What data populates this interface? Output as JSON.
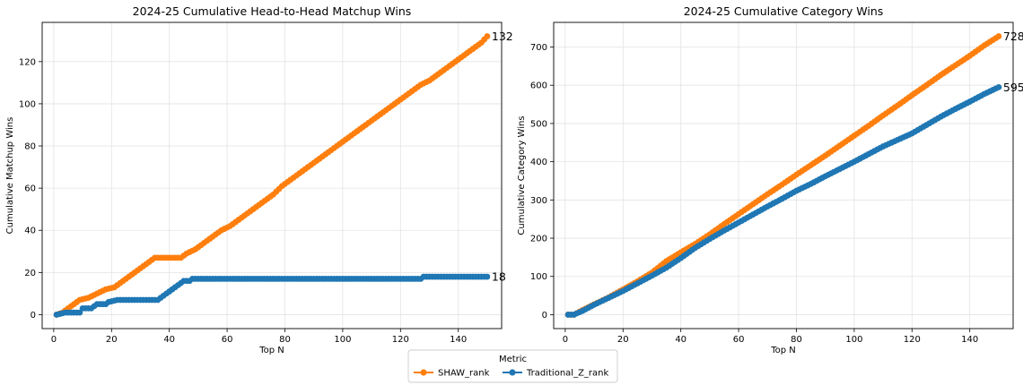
{
  "legend": {
    "title": "Metric",
    "entries": [
      {
        "name": "SHAW_rank",
        "color": "#ff7f0e"
      },
      {
        "name": "Traditional_Z_rank",
        "color": "#1f77b4"
      }
    ],
    "placement": "bottom-center"
  },
  "chart_data": [
    {
      "type": "line",
      "title": "2024-25 Cumulative Head-to-Head Matchup Wins",
      "xlabel": "Top N",
      "ylabel": "Cumulative Matchup Wins",
      "xlim": [
        -4,
        155
      ],
      "ylim": [
        -6.6,
        138.6
      ],
      "xticks": [
        0,
        20,
        40,
        60,
        80,
        100,
        120,
        140
      ],
      "yticks": [
        0,
        20,
        40,
        60,
        80,
        100,
        120
      ],
      "grid": true,
      "marker": "circle",
      "series": [
        {
          "name": "SHAW_rank",
          "color": "#ff7f0e",
          "end_label": "132",
          "points": [
            [
              1,
              0
            ],
            [
              3,
              1
            ],
            [
              6,
              4
            ],
            [
              9,
              7
            ],
            [
              12,
              8
            ],
            [
              15,
              10
            ],
            [
              18,
              12
            ],
            [
              21,
              13
            ],
            [
              24,
              16
            ],
            [
              27,
              19
            ],
            [
              30,
              22
            ],
            [
              33,
              25
            ],
            [
              35,
              27
            ],
            [
              38,
              27
            ],
            [
              41,
              27
            ],
            [
              44,
              27
            ],
            [
              46,
              29
            ],
            [
              49,
              31
            ],
            [
              52,
              34
            ],
            [
              55,
              37
            ],
            [
              58,
              40
            ],
            [
              61,
              42
            ],
            [
              64,
              45
            ],
            [
              67,
              48
            ],
            [
              70,
              51
            ],
            [
              73,
              54
            ],
            [
              76,
              57
            ],
            [
              79,
              61
            ],
            [
              82,
              64
            ],
            [
              85,
              67
            ],
            [
              88,
              70
            ],
            [
              91,
              73
            ],
            [
              94,
              76
            ],
            [
              97,
              79
            ],
            [
              100,
              82
            ],
            [
              103,
              85
            ],
            [
              106,
              88
            ],
            [
              109,
              91
            ],
            [
              112,
              94
            ],
            [
              115,
              97
            ],
            [
              118,
              100
            ],
            [
              121,
              103
            ],
            [
              124,
              106
            ],
            [
              127,
              109
            ],
            [
              130,
              111
            ],
            [
              133,
              114
            ],
            [
              136,
              117
            ],
            [
              139,
              120
            ],
            [
              142,
              123
            ],
            [
              145,
              126
            ],
            [
              148,
              129
            ],
            [
              150,
              132
            ]
          ]
        },
        {
          "name": "Traditional_Z_rank",
          "color": "#1f77b4",
          "end_label": "18",
          "points": [
            [
              1,
              0
            ],
            [
              4,
              1
            ],
            [
              9,
              1
            ],
            [
              10,
              3
            ],
            [
              13,
              3
            ],
            [
              15,
              5
            ],
            [
              18,
              5
            ],
            [
              19,
              6
            ],
            [
              22,
              7
            ],
            [
              36,
              7
            ],
            [
              38,
              9
            ],
            [
              40,
              11
            ],
            [
              43,
              14
            ],
            [
              45,
              16
            ],
            [
              47,
              16
            ],
            [
              48,
              17
            ],
            [
              80,
              17
            ],
            [
              100,
              17
            ],
            [
              127,
              17
            ],
            [
              128,
              18
            ],
            [
              150,
              18
            ]
          ]
        }
      ]
    },
    {
      "type": "line",
      "title": "2024-25 Cumulative Category Wins",
      "xlabel": "Top N",
      "ylabel": "Cumulative Category Wins",
      "xlim": [
        -4,
        155
      ],
      "ylim": [
        -36.4,
        764.4
      ],
      "xticks": [
        0,
        20,
        40,
        60,
        80,
        100,
        120,
        140
      ],
      "yticks": [
        0,
        100,
        200,
        300,
        400,
        500,
        600,
        700
      ],
      "grid": true,
      "marker": "circle",
      "series": [
        {
          "name": "SHAW_rank",
          "color": "#ff7f0e",
          "end_label": "728",
          "points": [
            [
              1,
              0
            ],
            [
              3,
              0
            ],
            [
              6,
              12
            ],
            [
              10,
              27
            ],
            [
              15,
              45
            ],
            [
              20,
              66
            ],
            [
              25,
              87
            ],
            [
              30,
              110
            ],
            [
              35,
              140
            ],
            [
              40,
              163
            ],
            [
              45,
              185
            ],
            [
              50,
              210
            ],
            [
              55,
              237
            ],
            [
              60,
              263
            ],
            [
              65,
              289
            ],
            [
              70,
              315
            ],
            [
              75,
              340
            ],
            [
              80,
              366
            ],
            [
              85,
              391
            ],
            [
              90,
              416
            ],
            [
              95,
              442
            ],
            [
              100,
              468
            ],
            [
              105,
              494
            ],
            [
              110,
              521
            ],
            [
              115,
              547
            ],
            [
              120,
              574
            ],
            [
              125,
              600
            ],
            [
              130,
              627
            ],
            [
              135,
              652
            ],
            [
              140,
              677
            ],
            [
              145,
              704
            ],
            [
              150,
              728
            ]
          ]
        },
        {
          "name": "Traditional_Z_rank",
          "color": "#1f77b4",
          "end_label": "595",
          "points": [
            [
              1,
              0
            ],
            [
              3,
              0
            ],
            [
              6,
              10
            ],
            [
              10,
              26
            ],
            [
              15,
              44
            ],
            [
              20,
              62
            ],
            [
              25,
              82
            ],
            [
              30,
              102
            ],
            [
              35,
              123
            ],
            [
              40,
              148
            ],
            [
              45,
              175
            ],
            [
              50,
              198
            ],
            [
              55,
              220
            ],
            [
              60,
              241
            ],
            [
              65,
              262
            ],
            [
              70,
              283
            ],
            [
              75,
              303
            ],
            [
              80,
              324
            ],
            [
              85,
              342
            ],
            [
              90,
              362
            ],
            [
              95,
              381
            ],
            [
              100,
              400
            ],
            [
              105,
              420
            ],
            [
              110,
              440
            ],
            [
              115,
              457
            ],
            [
              120,
              474
            ],
            [
              125,
              496
            ],
            [
              130,
              518
            ],
            [
              135,
              538
            ],
            [
              140,
              557
            ],
            [
              145,
              577
            ],
            [
              150,
              595
            ]
          ]
        }
      ]
    }
  ]
}
